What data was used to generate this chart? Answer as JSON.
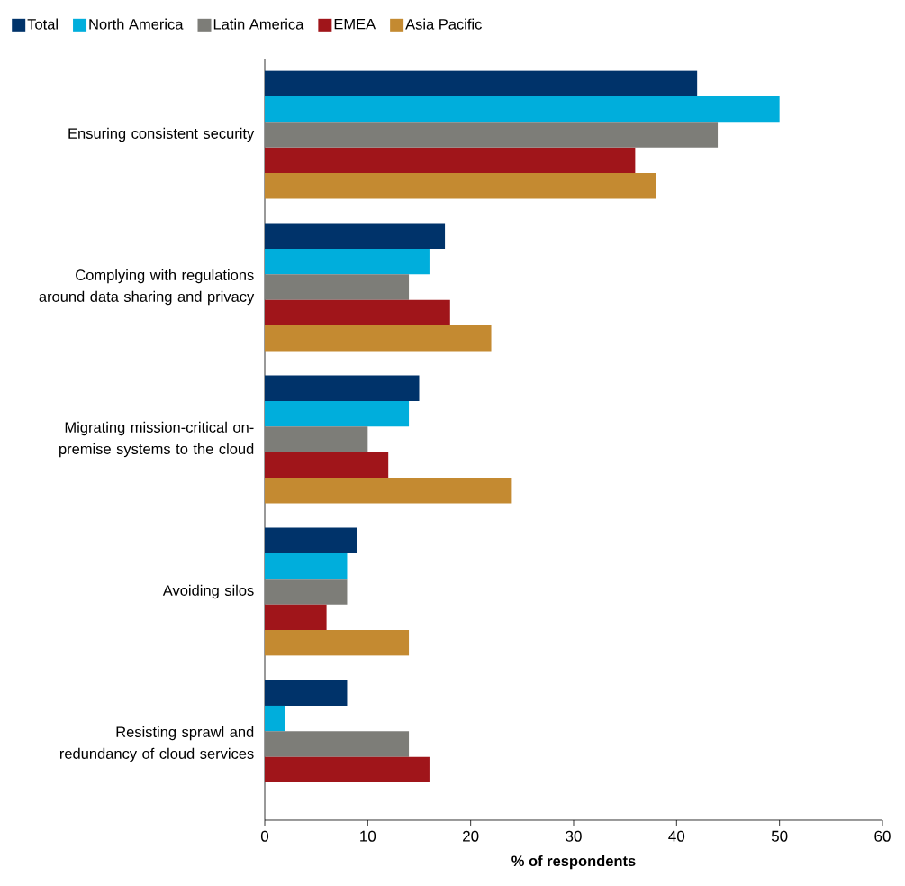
{
  "chart_data": {
    "type": "bar",
    "orientation": "horizontal",
    "xlabel": "% of respondents",
    "categories": [
      "Ensuring consistent security",
      "Complying with regulations around data sharing and privacy",
      "Migrating mission-critical on-premise systems to the cloud",
      "Avoiding silos",
      "Resisting sprawl and redundancy of cloud services"
    ],
    "series": [
      {
        "name": "Total",
        "color": "#00336a",
        "values": [
          42,
          17.5,
          15,
          9,
          8
        ]
      },
      {
        "name": "North America",
        "color": "#00aedc",
        "values": [
          50,
          16,
          14,
          8,
          2
        ]
      },
      {
        "name": "Latin America",
        "color": "#7d7d78",
        "values": [
          44,
          14,
          10,
          8,
          14
        ]
      },
      {
        "name": "EMEA",
        "color": "#a0151a",
        "values": [
          36,
          18,
          12,
          6,
          16
        ]
      },
      {
        "name": "Asia Pacific",
        "color": "#c48a31",
        "values": [
          38,
          22,
          24,
          14,
          null
        ]
      }
    ],
    "xlim": [
      0,
      60
    ],
    "xticks": [
      0,
      10,
      20,
      30,
      40,
      50,
      60
    ],
    "grid": false,
    "legend": "top"
  }
}
